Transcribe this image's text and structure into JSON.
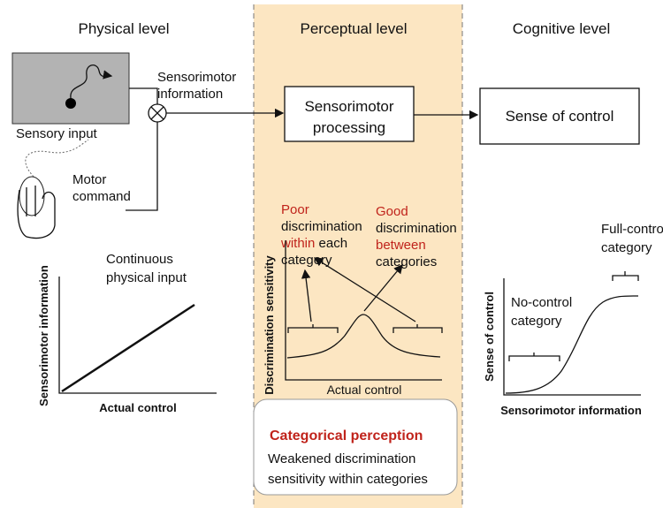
{
  "levels": {
    "physical": "Physical level",
    "perceptual": "Perceptual level",
    "cognitive": "Cognitive level"
  },
  "physical": {
    "sensorimotor_info": [
      "Sensorimotor",
      "information"
    ],
    "sensory_input": "Sensory input",
    "motor_command": [
      "Motor",
      "command"
    ],
    "plot": {
      "annotation": [
        "Continuous",
        "physical input"
      ],
      "y_label": "Sensorimotor information",
      "x_label": "Actual control"
    }
  },
  "perceptual": {
    "processing": [
      "Sensorimotor",
      "processing"
    ],
    "poor": {
      "red_1": "Poor",
      "line_2": "discrimination",
      "red_3": "within",
      "rest_3": " each",
      "line_4": "category"
    },
    "good": {
      "red_1": "Good",
      "line_2": "discrimination",
      "red_3": "between",
      "line_4": "categories"
    },
    "plot": {
      "y_label": "Discrimination sensitivity",
      "x_label": "Actual control"
    },
    "box": {
      "title": "Categorical perception",
      "lines": [
        "Weakened discrimination",
        "sensitivity within categories"
      ]
    }
  },
  "cognitive": {
    "sense_box": "Sense of control",
    "plot": {
      "full": [
        "Full-control",
        "category"
      ],
      "no": [
        "No-control",
        "category"
      ],
      "y_label": "Sense of control",
      "x_label": "Sensorimotor information"
    }
  }
}
